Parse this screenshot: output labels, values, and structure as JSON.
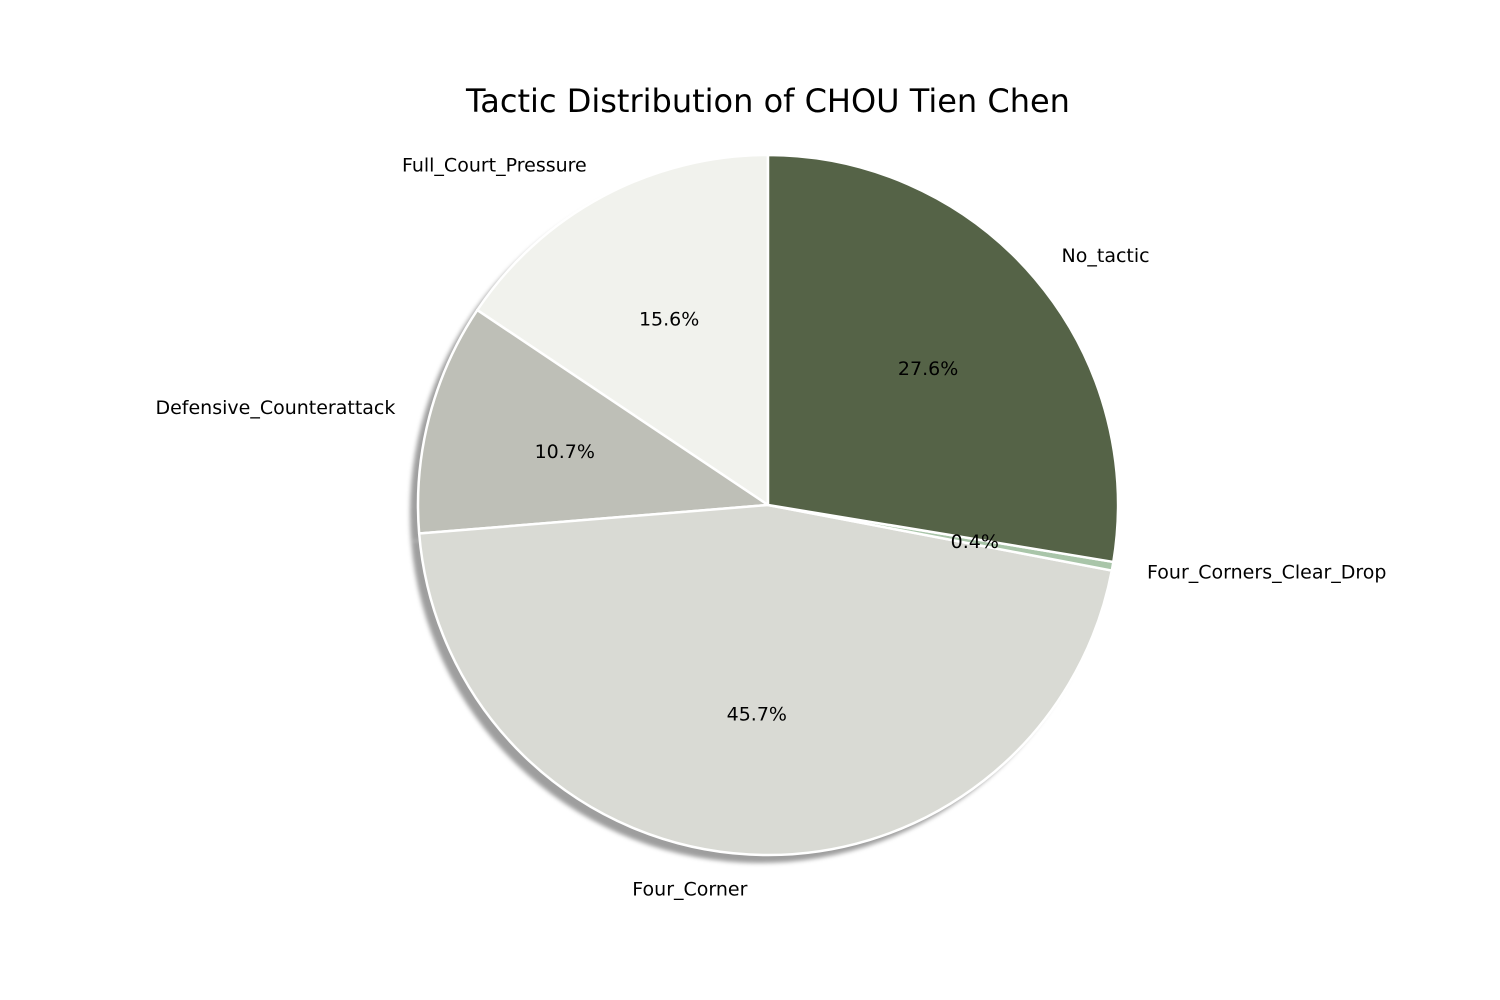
{
  "chart_data": {
    "type": "pie",
    "title": "Tactic Distribution of CHOU Tien Chen",
    "start_angle_deg": 90,
    "direction": "counterclockwise",
    "shadow": true,
    "slices": [
      {
        "label": "Full_Court_Pressure",
        "percent": 15.6,
        "value_label": "15.6%",
        "color": "#f1f2ed"
      },
      {
        "label": "Defensive_Counterattack",
        "percent": 10.7,
        "value_label": "10.7%",
        "color": "#bebfb7"
      },
      {
        "label": "Four_Corner",
        "percent": 45.7,
        "value_label": "45.7%",
        "color": "#d9dad4"
      },
      {
        "label": "Four_Corners_Clear_Drop",
        "percent": 0.4,
        "value_label": "0.4%",
        "color": "#a9c5a9"
      },
      {
        "label": "No_tactic",
        "percent": 27.6,
        "value_label": "27.6%",
        "color": "#556347"
      }
    ]
  }
}
